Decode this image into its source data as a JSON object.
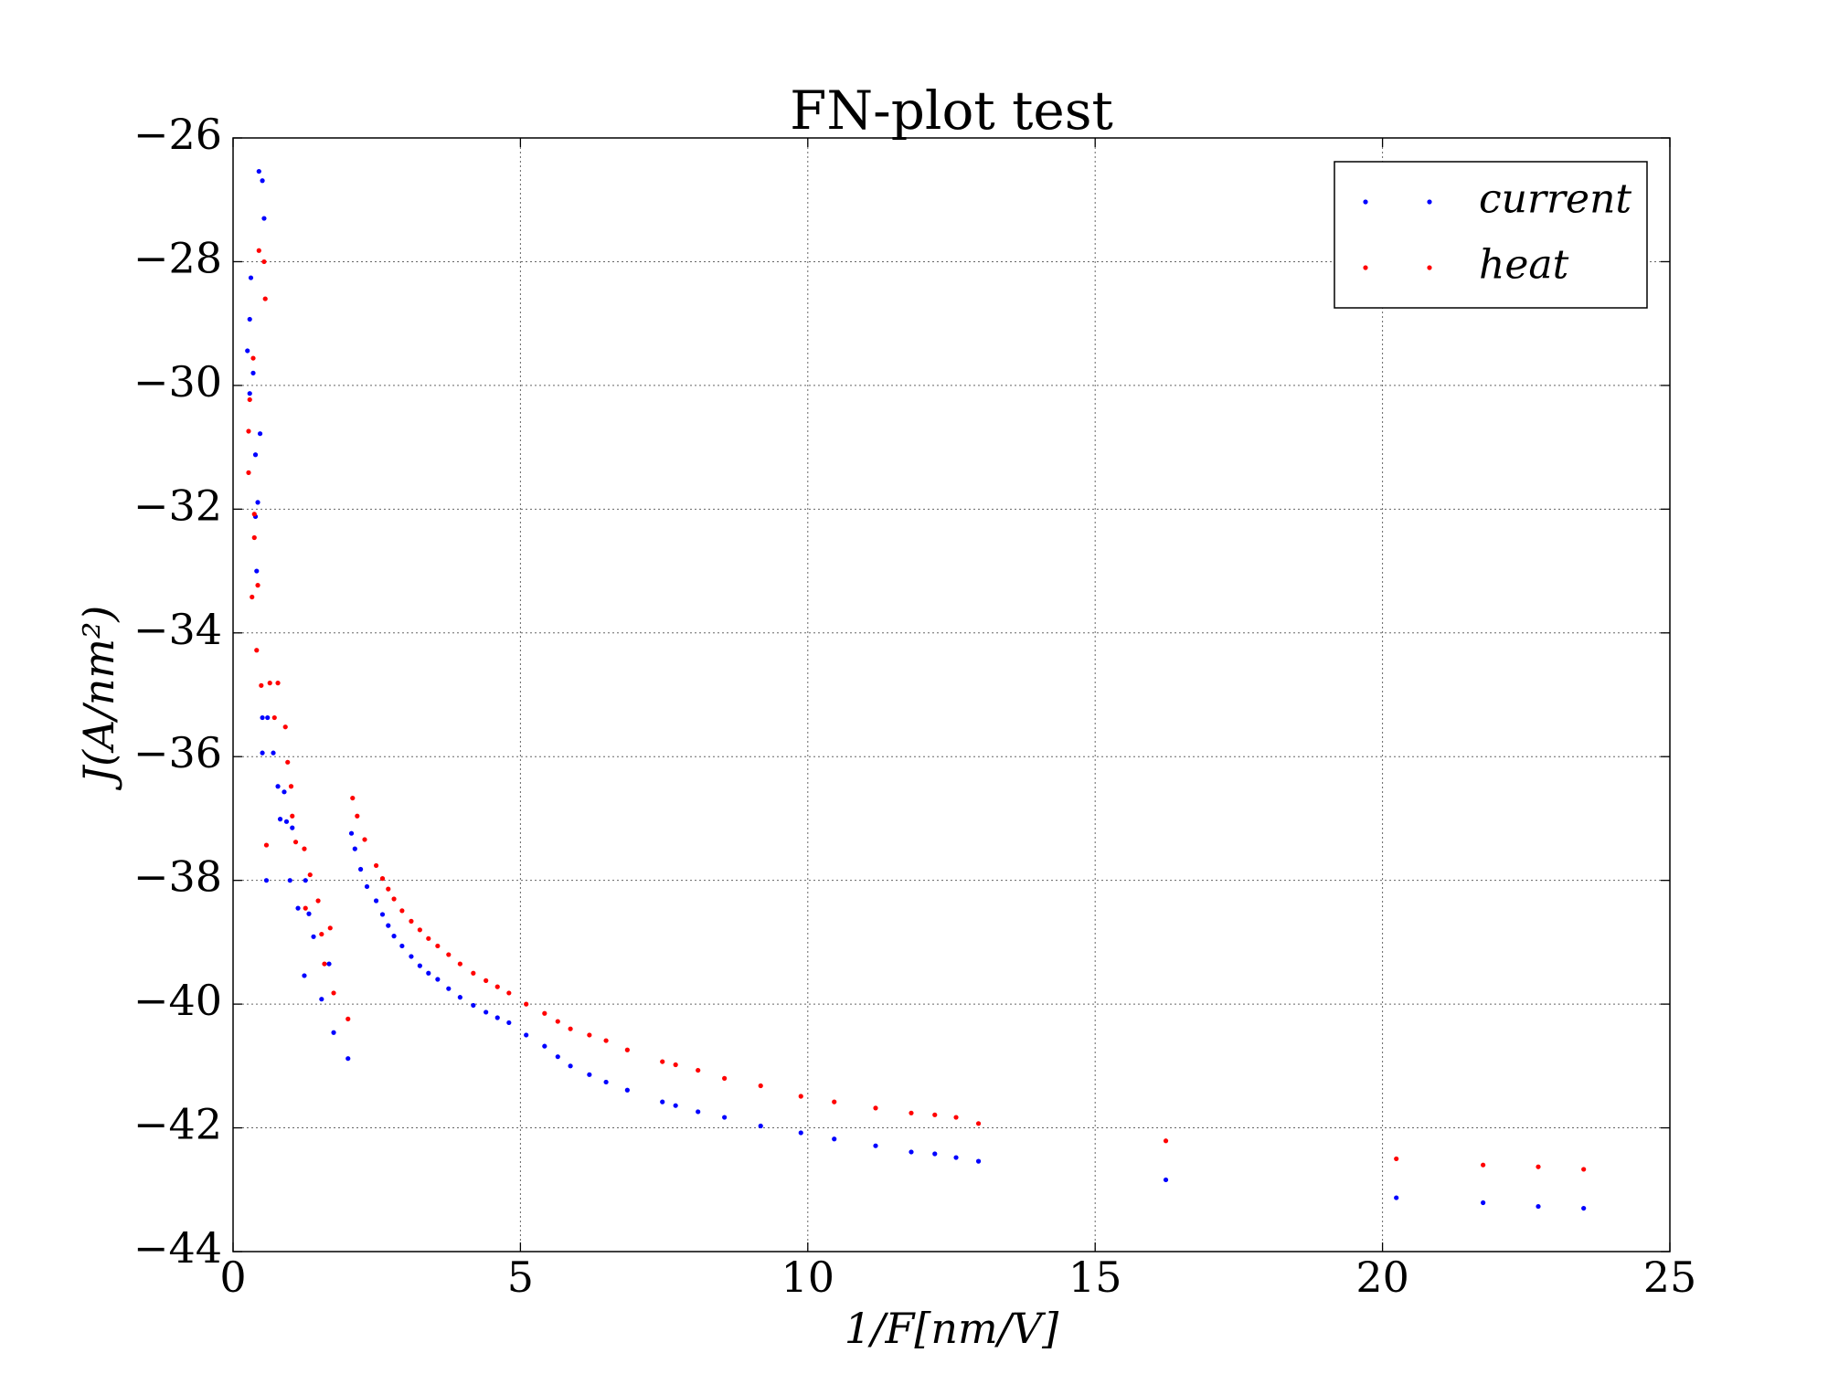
{
  "chart_data": {
    "type": "scatter",
    "title": "FN-plot test",
    "x_label": "1/F[nm/V]",
    "y_label": "J(A/nm²)",
    "xlim": [
      0,
      25
    ],
    "ylim": [
      -44,
      -26
    ],
    "xticks": [
      0,
      5,
      10,
      15,
      20,
      25
    ],
    "yticks": [
      {
        "value": -44,
        "label": "−44"
      },
      {
        "value": -42,
        "label": "−42"
      },
      {
        "value": -40,
        "label": "−40"
      },
      {
        "value": -38,
        "label": "−38"
      },
      {
        "value": -36,
        "label": "−36"
      },
      {
        "value": -34,
        "label": "−34"
      },
      {
        "value": -32,
        "label": "−32"
      },
      {
        "value": -30,
        "label": "−30"
      },
      {
        "value": -28,
        "label": "−28"
      },
      {
        "value": -26,
        "label": "−26"
      }
    ],
    "grid": true,
    "legend_position": "upper right",
    "series": [
      {
        "name": "current",
        "color": "#0000ff",
        "x": [
          0.45,
          0.51,
          0.54,
          0.31,
          0.29,
          0.25,
          0.29,
          0.35,
          0.47,
          0.39,
          0.43,
          0.39,
          0.41,
          0.51,
          0.6,
          0.51,
          0.7,
          0.78,
          0.89,
          0.82,
          0.93,
          1.03,
          0.58,
          0.99,
          1.13,
          1.26,
          1.32,
          1.24,
          1.4,
          1.54,
          1.67,
          1.75,
          2.0,
          2.06,
          2.12,
          2.22,
          2.33,
          2.49,
          2.6,
          2.7,
          2.8,
          2.94,
          3.1,
          3.25,
          3.4,
          3.56,
          3.75,
          3.95,
          4.18,
          4.4,
          4.6,
          4.8,
          5.1,
          5.42,
          5.65,
          5.87,
          6.2,
          6.49,
          6.86,
          7.47,
          7.7,
          8.09,
          8.55,
          9.18,
          9.88,
          10.46,
          11.18,
          11.8,
          12.21,
          12.58,
          12.97,
          16.23,
          20.24,
          21.75,
          22.71,
          23.5
        ],
        "values": [
          -26.54,
          -26.69,
          -27.3,
          -28.26,
          -28.93,
          -29.44,
          -30.13,
          -29.8,
          -30.78,
          -31.12,
          -31.89,
          -32.12,
          -33.0,
          -35.37,
          -35.37,
          -35.94,
          -35.94,
          -36.48,
          -36.57,
          -37.01,
          -37.05,
          -37.15,
          -38.0,
          -38.0,
          -38.45,
          -38.0,
          -38.54,
          -39.54,
          -38.91,
          -39.92,
          -39.35,
          -40.46,
          -40.88,
          -37.24,
          -37.49,
          -37.82,
          -38.1,
          -38.33,
          -38.55,
          -38.73,
          -38.9,
          -39.06,
          -39.23,
          -39.38,
          -39.5,
          -39.6,
          -39.75,
          -39.89,
          -40.02,
          -40.13,
          -40.22,
          -40.3,
          -40.5,
          -40.68,
          -40.85,
          -41.0,
          -41.14,
          -41.26,
          -41.39,
          -41.58,
          -41.64,
          -41.74,
          -41.83,
          -41.97,
          -42.08,
          -42.18,
          -42.29,
          -42.39,
          -42.42,
          -42.48,
          -42.54,
          -42.84,
          -43.13,
          -43.21,
          -43.27,
          -43.3
        ]
      },
      {
        "name": "heat",
        "color": "#ff0000",
        "x": [
          0.45,
          0.54,
          0.56,
          0.35,
          0.29,
          0.27,
          0.27,
          0.37,
          0.37,
          0.43,
          0.33,
          0.41,
          0.49,
          0.64,
          0.78,
          0.72,
          0.91,
          0.95,
          1.01,
          1.03,
          1.09,
          0.58,
          1.24,
          1.34,
          1.26,
          1.48,
          1.54,
          1.69,
          1.59,
          1.75,
          2.0,
          2.08,
          2.16,
          2.29,
          2.49,
          2.6,
          2.7,
          2.8,
          2.94,
          3.1,
          3.25,
          3.4,
          3.56,
          3.75,
          3.95,
          4.18,
          4.4,
          4.6,
          4.8,
          5.1,
          5.42,
          5.65,
          5.87,
          6.2,
          6.49,
          6.86,
          7.47,
          7.7,
          8.09,
          8.55,
          9.18,
          9.88,
          10.46,
          11.18,
          11.8,
          12.21,
          12.58,
          12.97,
          16.23,
          20.24,
          21.75,
          22.71,
          23.5
        ],
        "values": [
          -27.82,
          -28.0,
          -28.6,
          -29.56,
          -30.23,
          -30.74,
          -31.41,
          -32.08,
          -32.46,
          -33.23,
          -33.42,
          -34.28,
          -34.85,
          -34.81,
          -34.81,
          -35.37,
          -35.52,
          -36.09,
          -36.48,
          -36.96,
          -37.38,
          -37.43,
          -37.49,
          -37.91,
          -38.45,
          -38.33,
          -38.87,
          -38.77,
          -39.35,
          -39.82,
          -40.24,
          -36.67,
          -36.96,
          -37.34,
          -37.76,
          -37.97,
          -38.14,
          -38.3,
          -38.49,
          -38.66,
          -38.8,
          -38.94,
          -39.06,
          -39.2,
          -39.35,
          -39.5,
          -39.62,
          -39.72,
          -39.82,
          -40.0,
          -40.15,
          -40.28,
          -40.4,
          -40.5,
          -40.59,
          -40.74,
          -40.93,
          -40.98,
          -41.07,
          -41.2,
          -41.32,
          -41.49,
          -41.58,
          -41.68,
          -41.76,
          -41.79,
          -41.83,
          -41.93,
          -42.21,
          -42.5,
          -42.6,
          -42.63,
          -42.67
        ]
      }
    ]
  }
}
